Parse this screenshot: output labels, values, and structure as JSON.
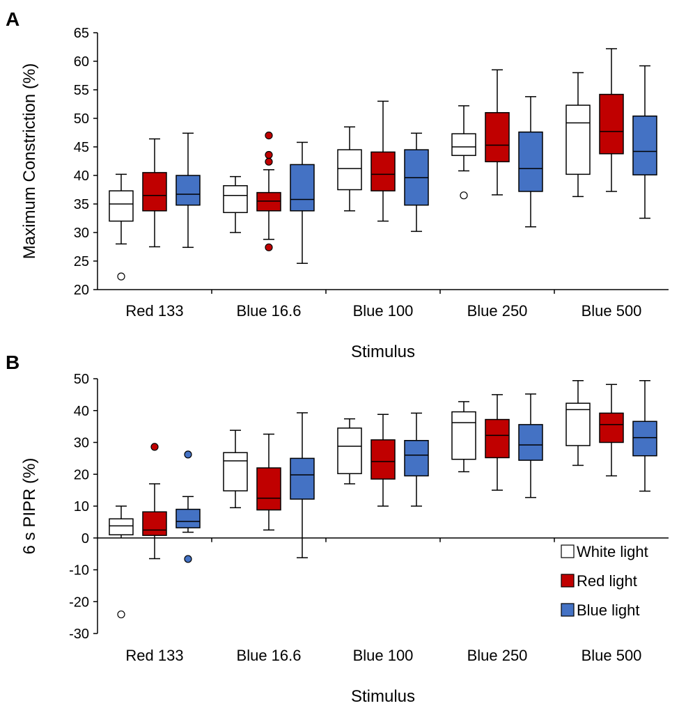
{
  "chart_data": [
    {
      "panel": "A",
      "type": "box",
      "title": "",
      "xlabel": "Stimulus",
      "ylabel": "Maximum Constriction (%)",
      "ylim": [
        20,
        65
      ],
      "yticks": [
        20,
        25,
        30,
        35,
        40,
        45,
        50,
        55,
        60,
        65
      ],
      "grid": false,
      "categories": [
        "Red 133",
        "Blue 16.6",
        "Blue 100",
        "Blue 250",
        "Blue 500"
      ],
      "series": [
        {
          "name": "White light",
          "color": "#ffffff",
          "boxes": [
            {
              "whisker_low": 28.0,
              "q1": 32.0,
              "median": 35.0,
              "q3": 37.3,
              "whisker_high": 40.2,
              "outliers": [
                22.3
              ]
            },
            {
              "whisker_low": 30.0,
              "q1": 33.5,
              "median": 36.5,
              "q3": 38.2,
              "whisker_high": 39.8,
              "outliers": []
            },
            {
              "whisker_low": 33.8,
              "q1": 37.5,
              "median": 41.2,
              "q3": 44.5,
              "whisker_high": 48.5,
              "outliers": []
            },
            {
              "whisker_low": 40.8,
              "q1": 43.5,
              "median": 45.0,
              "q3": 47.3,
              "whisker_high": 52.2,
              "outliers": [
                36.5
              ]
            },
            {
              "whisker_low": 36.3,
              "q1": 40.2,
              "median": 49.2,
              "q3": 52.3,
              "whisker_high": 58.0,
              "outliers": []
            }
          ]
        },
        {
          "name": "Red light",
          "color": "#c00000",
          "boxes": [
            {
              "whisker_low": 27.5,
              "q1": 33.8,
              "median": 36.5,
              "q3": 40.5,
              "whisker_high": 46.4,
              "outliers": []
            },
            {
              "whisker_low": 28.8,
              "q1": 33.8,
              "median": 35.5,
              "q3": 37.0,
              "whisker_high": 41.0,
              "outliers": [
                27.4,
                42.4,
                43.6,
                47.0
              ]
            },
            {
              "whisker_low": 32.0,
              "q1": 37.3,
              "median": 40.2,
              "q3": 44.1,
              "whisker_high": 53.0,
              "outliers": []
            },
            {
              "whisker_low": 36.6,
              "q1": 42.4,
              "median": 45.3,
              "q3": 51.0,
              "whisker_high": 58.5,
              "outliers": []
            },
            {
              "whisker_low": 37.2,
              "q1": 43.8,
              "median": 47.7,
              "q3": 54.2,
              "whisker_high": 62.2,
              "outliers": []
            }
          ]
        },
        {
          "name": "Blue light",
          "color": "#4472c4",
          "boxes": [
            {
              "whisker_low": 27.4,
              "q1": 34.8,
              "median": 36.7,
              "q3": 40.0,
              "whisker_high": 47.4,
              "outliers": []
            },
            {
              "whisker_low": 24.6,
              "q1": 33.8,
              "median": 35.8,
              "q3": 41.9,
              "whisker_high": 45.8,
              "outliers": []
            },
            {
              "whisker_low": 30.2,
              "q1": 34.8,
              "median": 39.6,
              "q3": 44.5,
              "whisker_high": 47.4,
              "outliers": []
            },
            {
              "whisker_low": 31.0,
              "q1": 37.2,
              "median": 41.2,
              "q3": 47.6,
              "whisker_high": 53.8,
              "outliers": []
            },
            {
              "whisker_low": 32.5,
              "q1": 40.1,
              "median": 44.2,
              "q3": 50.4,
              "whisker_high": 59.2,
              "outliers": []
            }
          ]
        }
      ]
    },
    {
      "panel": "B",
      "type": "box",
      "title": "",
      "xlabel": "Stimulus",
      "ylabel": "6 s PIPR (%)",
      "ylim": [
        -30,
        50
      ],
      "yticks": [
        -30,
        -20,
        -10,
        0,
        10,
        20,
        30,
        40,
        50
      ],
      "grid": false,
      "legend_position": "bottom-right",
      "categories": [
        "Red 133",
        "Blue 16.6",
        "Blue 100",
        "Blue 250",
        "Blue 500"
      ],
      "series": [
        {
          "name": "White light",
          "color": "#ffffff",
          "boxes": [
            {
              "whisker_low": 0.0,
              "q1": 1.0,
              "median": 3.8,
              "q3": 6.0,
              "whisker_high": 10.0,
              "outliers": [
                -24.0
              ]
            },
            {
              "whisker_low": 9.5,
              "q1": 14.8,
              "median": 24.2,
              "q3": 26.8,
              "whisker_high": 33.8,
              "outliers": []
            },
            {
              "whisker_low": 17.0,
              "q1": 20.2,
              "median": 28.8,
              "q3": 34.5,
              "whisker_high": 37.4,
              "outliers": []
            },
            {
              "whisker_low": 20.8,
              "q1": 24.7,
              "median": 36.2,
              "q3": 39.6,
              "whisker_high": 42.8,
              "outliers": []
            },
            {
              "whisker_low": 22.8,
              "q1": 29.0,
              "median": 40.3,
              "q3": 42.3,
              "whisker_high": 49.4,
              "outliers": []
            }
          ]
        },
        {
          "name": "Red light",
          "color": "#c00000",
          "boxes": [
            {
              "whisker_low": -6.5,
              "q1": 0.8,
              "median": 2.5,
              "q3": 8.2,
              "whisker_high": 17.0,
              "outliers": [
                28.6
              ]
            },
            {
              "whisker_low": 2.5,
              "q1": 8.8,
              "median": 12.5,
              "q3": 22.0,
              "whisker_high": 32.6,
              "outliers": []
            },
            {
              "whisker_low": 10.0,
              "q1": 18.5,
              "median": 24.0,
              "q3": 30.8,
              "whisker_high": 38.8,
              "outliers": []
            },
            {
              "whisker_low": 15.0,
              "q1": 25.2,
              "median": 32.2,
              "q3": 37.2,
              "whisker_high": 45.0,
              "outliers": []
            },
            {
              "whisker_low": 19.5,
              "q1": 30.0,
              "median": 35.6,
              "q3": 39.2,
              "whisker_high": 48.2,
              "outliers": []
            }
          ]
        },
        {
          "name": "Blue light",
          "color": "#4472c4",
          "boxes": [
            {
              "whisker_low": 1.8,
              "q1": 3.2,
              "median": 5.2,
              "q3": 9.0,
              "whisker_high": 13.0,
              "outliers": [
                26.2,
                -6.6
              ]
            },
            {
              "whisker_low": -6.2,
              "q1": 12.2,
              "median": 19.8,
              "q3": 25.0,
              "whisker_high": 39.3,
              "outliers": []
            },
            {
              "whisker_low": 10.0,
              "q1": 19.5,
              "median": 26.0,
              "q3": 30.6,
              "whisker_high": 39.2,
              "outliers": []
            },
            {
              "whisker_low": 12.7,
              "q1": 24.4,
              "median": 29.2,
              "q3": 35.6,
              "whisker_high": 45.2,
              "outliers": []
            },
            {
              "whisker_low": 14.7,
              "q1": 25.8,
              "median": 31.5,
              "q3": 36.6,
              "whisker_high": 49.4,
              "outliers": []
            }
          ]
        }
      ]
    }
  ]
}
